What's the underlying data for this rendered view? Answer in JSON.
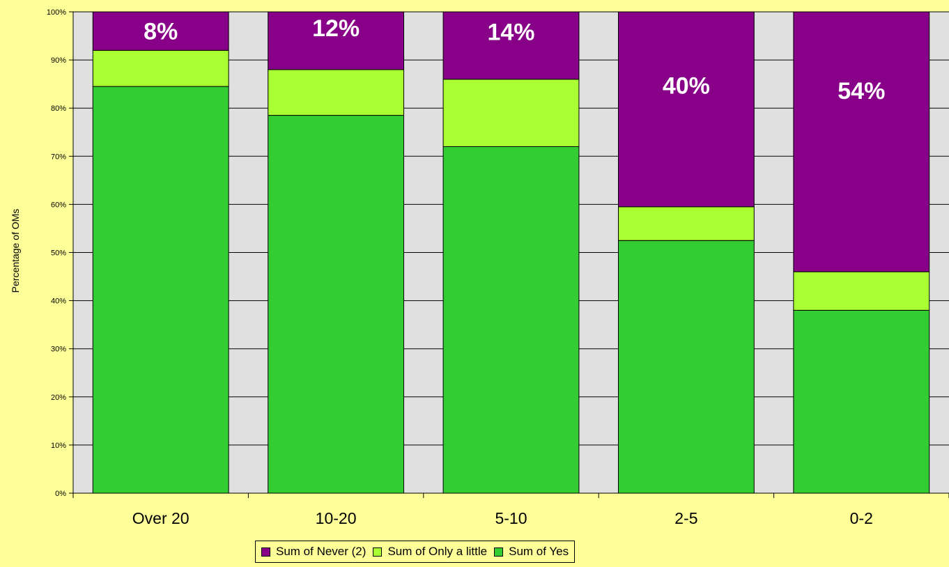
{
  "chart_data": {
    "type": "bar",
    "stacked": true,
    "percent_stacked": true,
    "categories": [
      "Over 20",
      "10-20",
      "5-10",
      "2-5",
      "0-2"
    ],
    "series": [
      {
        "name": "Sum of Yes",
        "color": "#33cc33",
        "values": [
          84.5,
          78.5,
          72,
          52.5,
          38
        ]
      },
      {
        "name": "Sum of Only a little",
        "color": "#aaff33",
        "values": [
          7.5,
          9.5,
          14,
          7,
          8
        ]
      },
      {
        "name": "Sum of Never (2)",
        "color": "#880088",
        "values": [
          8,
          12,
          14,
          40.5,
          54
        ]
      }
    ],
    "data_labels": [
      "8%",
      "12%",
      "14%",
      "40%",
      "54%"
    ],
    "ylabel": "Percentage of OMs",
    "xlabel": "",
    "ylim": [
      0,
      100
    ],
    "yticks": [
      "0%",
      "10%",
      "20%",
      "30%",
      "40%",
      "50%",
      "60%",
      "70%",
      "80%",
      "90%",
      "100%"
    ],
    "grid": true,
    "legend_position": "bottom",
    "plot_background": "#e0e0e0",
    "page_background": "#ffff99"
  }
}
